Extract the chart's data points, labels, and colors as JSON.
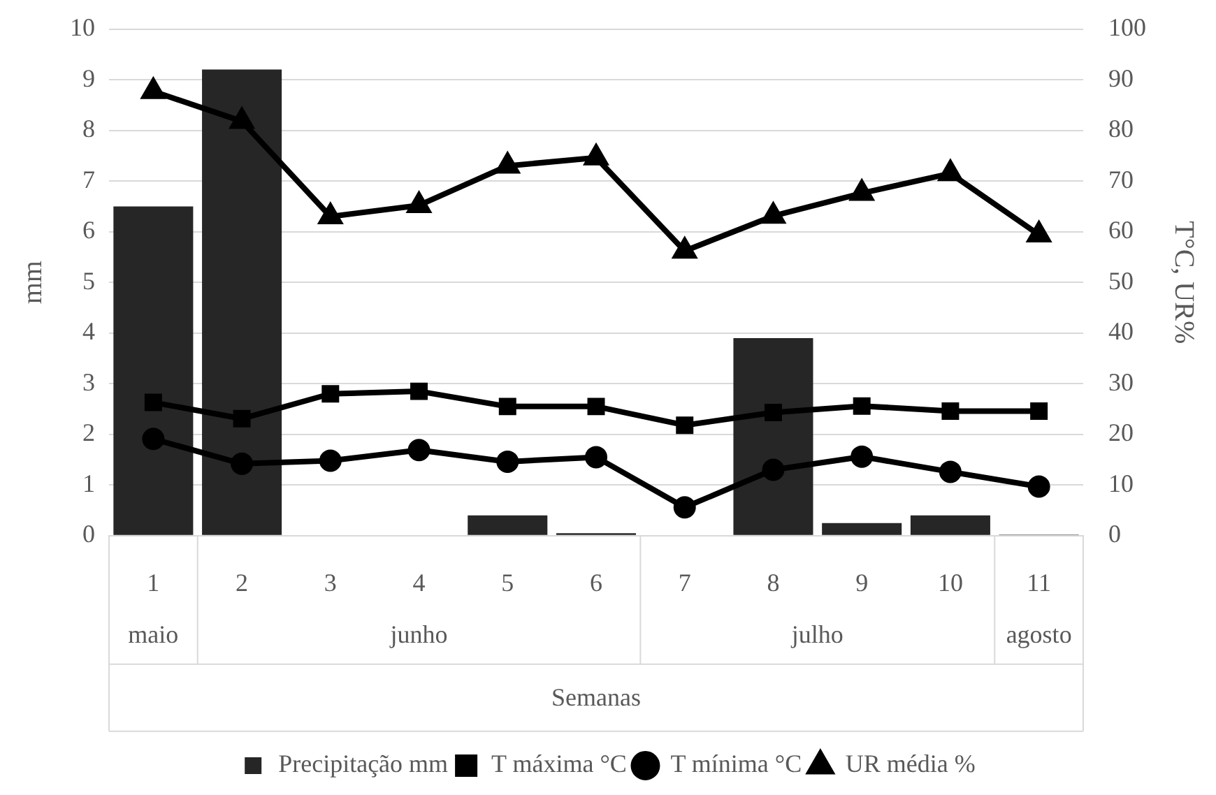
{
  "chart_data": {
    "type": "bar",
    "categories": [
      "1",
      "2",
      "3",
      "4",
      "5",
      "6",
      "7",
      "8",
      "9",
      "10",
      "11"
    ],
    "xlabel": "Semanas",
    "ylabel": "mm",
    "y2label": "T°C, UR%",
    "annotations": [
      "maio",
      "junho",
      "julho",
      "agosto"
    ],
    "series": [
      {
        "name": "Precipitação mm",
        "color": "#262626",
        "values": [
          6.5,
          9.2,
          0,
          0,
          0.4,
          0.05,
          0,
          3.9,
          0.25,
          0.4,
          0.02
        ]
      },
      {
        "name": "T máxima °C",
        "type": "line",
        "axis": "y2",
        "marker": "square",
        "color": "#000000",
        "values": [
          26.3,
          23.1,
          28,
          28.5,
          25.5,
          25.5,
          21.8,
          24.3,
          25.6,
          24.6,
          24.6
        ]
      },
      {
        "name": "T mínima °C",
        "type": "line",
        "axis": "y2",
        "marker": "circle",
        "color": "#000000",
        "values": [
          19.1,
          14.2,
          14.8,
          16.9,
          14.6,
          15.5,
          5.6,
          13,
          15.6,
          12.6,
          9.7
        ]
      },
      {
        "name": "UR média %",
        "type": "line",
        "axis": "y2",
        "marker": "triangle",
        "color": "#000000",
        "values": [
          87.7,
          81.8,
          63,
          65.2,
          73,
          74.6,
          56.2,
          63.1,
          67.6,
          71.5,
          59.4
        ]
      }
    ],
    "ylim": [
      0,
      10
    ],
    "yticks": [
      0,
      1,
      2,
      3,
      4,
      5,
      6,
      7,
      8,
      9,
      10
    ],
    "y2lim": [
      0,
      100
    ],
    "y2ticks": [
      0,
      10,
      20,
      30,
      40,
      50,
      60,
      70,
      80,
      90,
      100
    ],
    "grid": "y",
    "legend": "bottom"
  }
}
